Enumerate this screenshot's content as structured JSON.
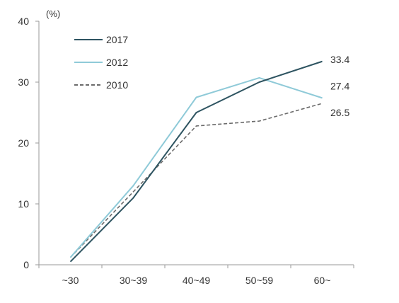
{
  "chart_data": {
    "type": "line",
    "title": "",
    "xlabel": "",
    "ylabel": "",
    "unit": "(%)",
    "categories": [
      "~30",
      "30~39",
      "40~49",
      "50~59",
      "60~"
    ],
    "ylim": [
      0,
      40
    ],
    "yticks": [
      0,
      10,
      20,
      30,
      40
    ],
    "grid": false,
    "legend_position": "top-left",
    "series": [
      {
        "name": "2017",
        "values": [
          0.5,
          11,
          25,
          30,
          33.4
        ],
        "color": "#2e5461",
        "dash": "solid",
        "end_label": "33.4"
      },
      {
        "name": "2012",
        "values": [
          1.2,
          13,
          27.5,
          30.7,
          27.4
        ],
        "color": "#8fcad8",
        "dash": "solid",
        "end_label": "27.4"
      },
      {
        "name": "2010",
        "values": [
          1.2,
          12,
          22.8,
          23.6,
          26.5
        ],
        "color": "#6b6b6b",
        "dash": "dashed",
        "end_label": "26.5"
      }
    ]
  }
}
